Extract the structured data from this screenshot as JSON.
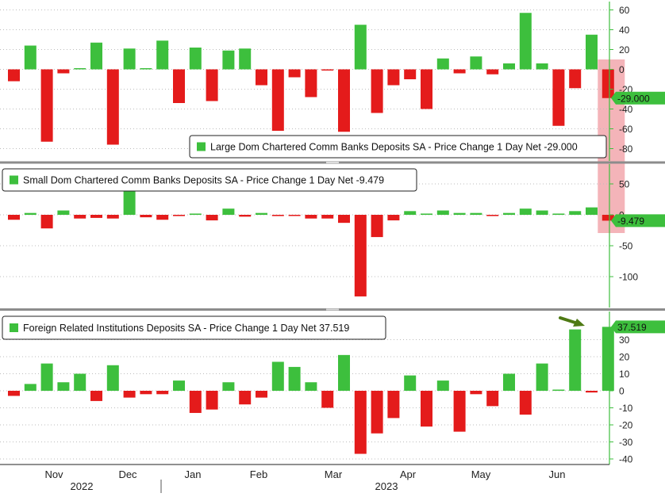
{
  "colors": {
    "up": "#3dbf3d",
    "down": "#e41b1b",
    "highlight": "#f2a7ad",
    "arrow": "#4e7a14",
    "axis": "#3dbf3d",
    "divider": "#8c8c8c"
  },
  "chart_data": [
    {
      "type": "bar",
      "id": "large",
      "title": "Large Dom Chartered Comm Banks Deposits SA - Price Change 1 Day Net -29.000",
      "last_label": "-29.000",
      "ylim": [
        -95,
        65
      ],
      "yticks": [
        60,
        40,
        20,
        0,
        -20,
        -40,
        -60,
        -80
      ],
      "values": [
        -12,
        24,
        -73,
        -4,
        0,
        27,
        -76,
        21,
        0,
        29,
        -34,
        22,
        -32,
        19,
        21,
        -16,
        -62,
        -8,
        -28,
        -1,
        -63,
        45,
        -44,
        -16,
        -10,
        -40,
        11,
        -4,
        13,
        -5,
        6,
        57,
        6,
        -57,
        -19,
        35,
        -29
      ]
    },
    {
      "type": "bar",
      "id": "small",
      "title": "Small Dom Chartered Comm Banks Deposits SA - Price Change 1 Day Net -9.479",
      "last_label": "-9.479",
      "ylim": [
        -135,
        75
      ],
      "yticks": [
        50,
        0,
        -50,
        -100
      ],
      "values": [
        -8,
        3,
        -22,
        7,
        -6,
        -5,
        -6,
        38,
        -4,
        -8,
        -2,
        2,
        -9,
        10,
        -3,
        3,
        -2,
        -1,
        -6,
        -6,
        -13,
        -132,
        -36,
        -9,
        6,
        2,
        7,
        3,
        3,
        -2,
        3,
        10,
        7,
        2,
        6,
        12,
        -9.479
      ]
    },
    {
      "type": "bar",
      "id": "foreign",
      "title": "Foreign Related Institutions Deposits SA - Price Change 1 Day Net 37.519",
      "last_label": "37.519",
      "ylim": [
        -42,
        43
      ],
      "yticks": [
        30,
        20,
        10,
        0,
        -10,
        -20,
        -30,
        -40
      ],
      "values": [
        -3,
        4,
        16,
        5,
        10,
        -6,
        15,
        -4,
        -2,
        -2,
        6,
        -13,
        -11,
        5,
        -8,
        -4,
        17,
        14,
        5,
        -10,
        21,
        -37,
        -25,
        -16,
        9,
        -21,
        6,
        -24,
        -2,
        -9,
        10,
        -14,
        16,
        0.5,
        36,
        -1,
        37.519
      ]
    },
    {
      "type": "axis",
      "months": [
        "Nov",
        "Dec",
        "Jan",
        "Feb",
        "Mar",
        "Apr",
        "May",
        "Jun"
      ],
      "years": [
        "2022",
        "2023"
      ]
    }
  ]
}
